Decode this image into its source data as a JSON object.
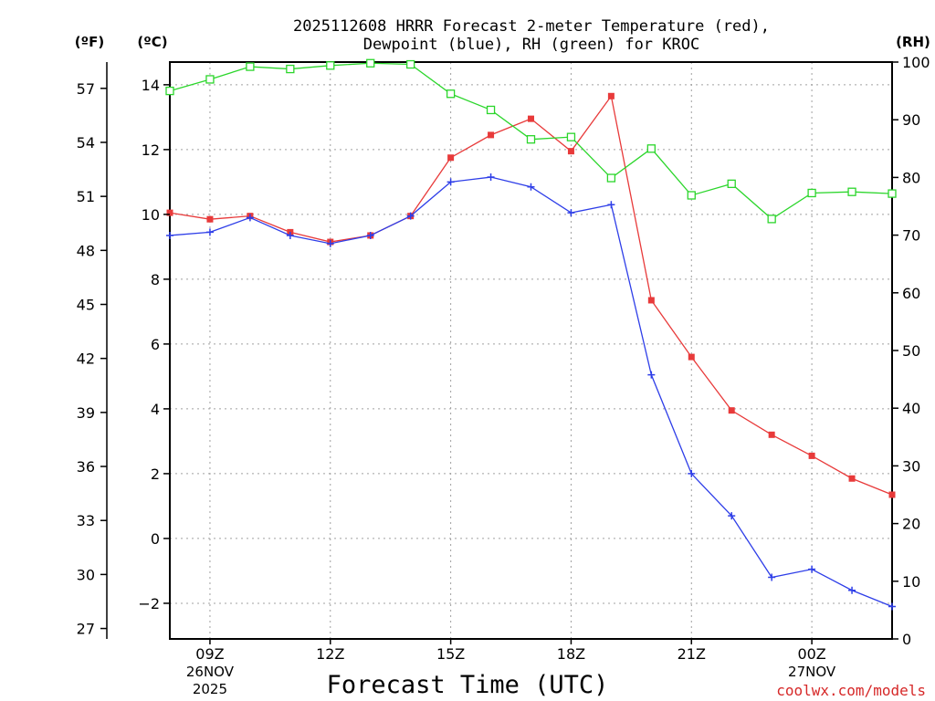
{
  "chart_data": {
    "type": "line",
    "title_line1": "2025112608 HRRR Forecast 2-meter Temperature (red),",
    "title_line2": "Dewpoint (blue), RH (green) for KROC",
    "units": {
      "fahrenheit": "(ºF)",
      "celsius": "(ºC)",
      "rh": "(RH)"
    },
    "xlabel": "Forecast Time (UTC)",
    "credit": "coolwx.com/models",
    "x_hours": [
      8,
      9,
      10,
      11,
      12,
      13,
      14,
      15,
      16,
      17,
      18,
      19,
      20,
      21,
      22,
      23,
      24,
      25,
      26
    ],
    "xlim": [
      8,
      26
    ],
    "x_ticks": [
      {
        "hour": 9,
        "label": "09Z",
        "date1": "26NOV",
        "date2": "2025"
      },
      {
        "hour": 12,
        "label": "12Z"
      },
      {
        "hour": 15,
        "label": "15Z"
      },
      {
        "hour": 18,
        "label": "18Z"
      },
      {
        "hour": 21,
        "label": "21Z"
      },
      {
        "hour": 24,
        "label": "00Z",
        "date1": "27NOV"
      }
    ],
    "celsius_axis": {
      "ylim": [
        -3.1,
        14.7
      ],
      "ticks": [
        14,
        12,
        10,
        8,
        6,
        4,
        2,
        0,
        -2
      ],
      "tick_labels": [
        "14",
        "12",
        "10",
        "8",
        "6",
        "4",
        "2",
        "0",
        "−2"
      ]
    },
    "fahrenheit_axis": {
      "ticks": [
        57,
        54,
        51,
        48,
        45,
        42,
        39,
        36,
        33,
        30,
        27
      ],
      "tick_labels": [
        "57",
        "54",
        "51",
        "48",
        "45",
        "42",
        "39",
        "36",
        "33",
        "30",
        "27"
      ]
    },
    "rh_axis": {
      "ylim": [
        0,
        100
      ],
      "ticks": [
        100,
        90,
        80,
        70,
        60,
        50,
        40,
        30,
        20,
        10,
        0
      ],
      "tick_labels": [
        "100",
        "90",
        "80",
        "70",
        "60",
        "50",
        "40",
        "30",
        "20",
        "10",
        "0"
      ]
    },
    "series": [
      {
        "name": "Temperature",
        "axis": "celsius",
        "color": "#e83a3a",
        "marker": "square",
        "values": [
          10.05,
          9.85,
          9.95,
          9.45,
          9.15,
          9.35,
          9.95,
          11.75,
          12.45,
          12.95,
          11.95,
          13.65,
          7.35,
          5.6,
          3.95,
          3.2,
          2.55,
          1.85,
          1.35
        ]
      },
      {
        "name": "Dewpoint",
        "axis": "celsius",
        "color": "#2e3ee8",
        "marker": "plus",
        "values": [
          9.35,
          9.45,
          9.9,
          9.35,
          9.1,
          9.35,
          9.95,
          11.0,
          11.15,
          10.85,
          10.05,
          10.3,
          5.05,
          2.0,
          0.7,
          -1.2,
          -0.95,
          -1.6,
          -2.1
        ]
      },
      {
        "name": "RH",
        "axis": "rh",
        "color": "#2bd62b",
        "marker": "open-square",
        "values": [
          95,
          97,
          99.2,
          98.8,
          99.4,
          99.8,
          99.6,
          94.5,
          91.7,
          86.6,
          87,
          79.9,
          85,
          76.9,
          78.9,
          72.8,
          77.3,
          77.5,
          77.2
        ]
      }
    ]
  }
}
